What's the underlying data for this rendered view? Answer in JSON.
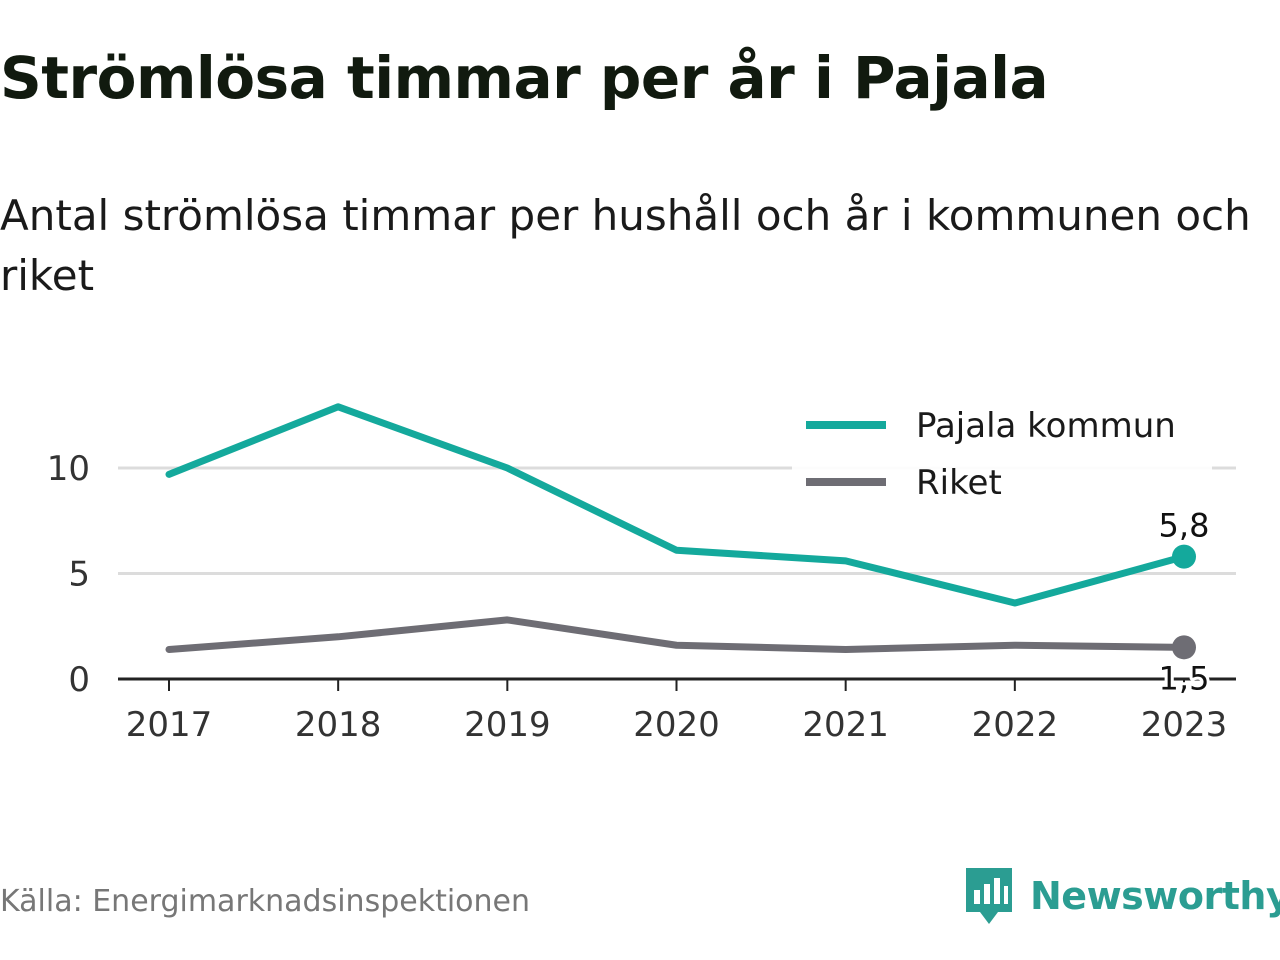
{
  "title": "Strömlösa timmar per år i Pajala",
  "subtitle": "Antal strömlösa timmar per hushåll och år i kommunen och riket",
  "source": "Källa: Energimarknadsinspektionen",
  "brand": {
    "name": "Newsworthy",
    "icon": "newsworthy-logo-icon",
    "color": "#2b9d92"
  },
  "chart_data": {
    "type": "line",
    "x": [
      "2017",
      "2018",
      "2019",
      "2020",
      "2021",
      "2022",
      "2023"
    ],
    "series": [
      {
        "name": "Pajala kommun",
        "color": "#14a99c",
        "values": [
          9.7,
          12.9,
          10.0,
          6.1,
          5.6,
          3.6,
          5.8
        ],
        "end_label": "5,8"
      },
      {
        "name": "Riket",
        "color": "#6e6d74",
        "values": [
          1.4,
          2.0,
          2.8,
          1.6,
          1.4,
          1.6,
          1.5
        ],
        "end_label": "1,5"
      }
    ],
    "yticks": [
      0,
      5,
      10
    ],
    "ylim": [
      0,
      13
    ],
    "grid": true,
    "legend": "top-right",
    "xlabel": "",
    "ylabel": ""
  }
}
